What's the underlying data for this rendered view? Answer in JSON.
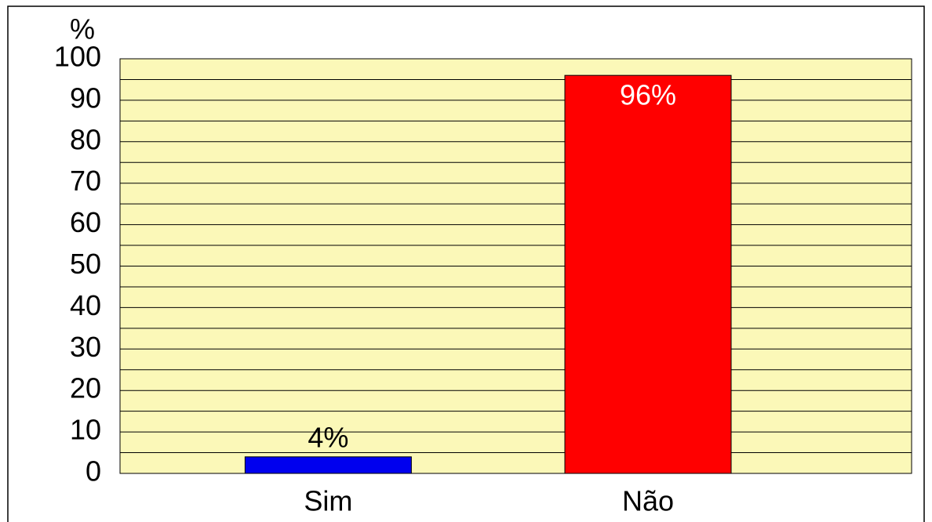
{
  "chart_data": {
    "type": "bar",
    "y_axis_label": "%",
    "categories": [
      "Sim",
      "Não"
    ],
    "values": [
      4,
      96
    ],
    "value_labels": [
      "4%",
      "96%"
    ],
    "colors": [
      "#0000ee",
      "#ff0000"
    ],
    "ylim": [
      0,
      100
    ],
    "yticks": [
      0,
      10,
      20,
      30,
      40,
      50,
      60,
      70,
      80,
      90,
      100
    ],
    "yminorticks": [
      5,
      15,
      25,
      35,
      45,
      55,
      65,
      75,
      85,
      95
    ],
    "grid": true
  }
}
